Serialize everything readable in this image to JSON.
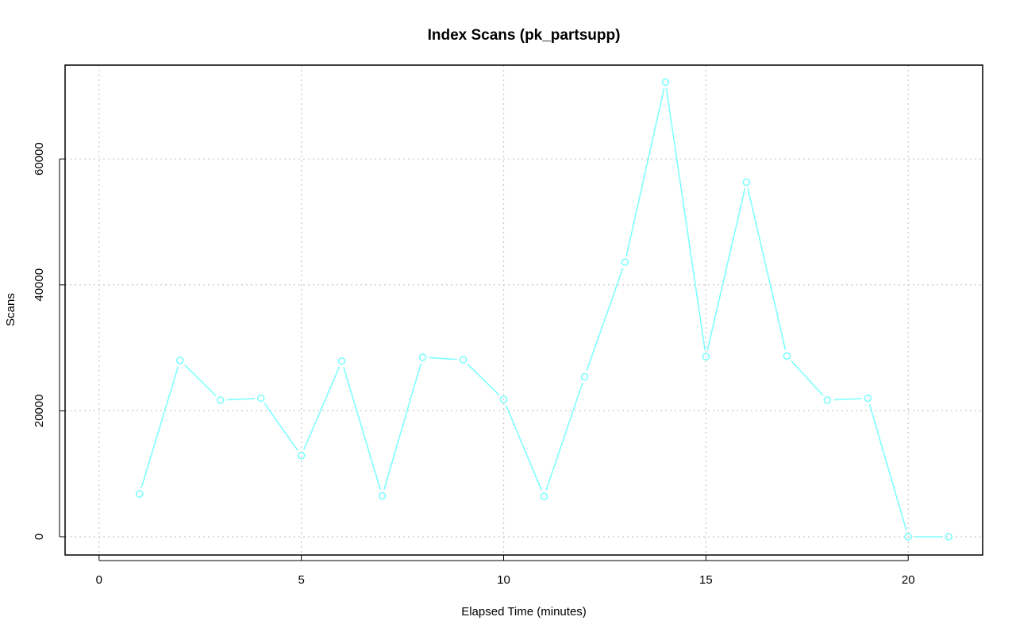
{
  "chart_data": {
    "type": "line",
    "title": "Index Scans (pk_partsupp)",
    "xlabel": "Elapsed Time (minutes)",
    "ylabel": "Scans",
    "xlim": [
      -0.84,
      21.84
    ],
    "ylim": [
      -2900,
      74900
    ],
    "x_ticks": [
      0,
      5,
      10,
      15,
      20
    ],
    "y_ticks": [
      0,
      20000,
      40000,
      60000
    ],
    "grid": true,
    "legend": "none",
    "series": [
      {
        "color": "#7fffff",
        "marker": "open-circle",
        "x": [
          1,
          2,
          3,
          4,
          5,
          6,
          7,
          8,
          9,
          10,
          11,
          12,
          13,
          14,
          15,
          16,
          17,
          18,
          19,
          20,
          21
        ],
        "values": [
          6800,
          28000,
          21700,
          22000,
          12900,
          27900,
          6500,
          28500,
          28100,
          21800,
          6400,
          25400,
          43600,
          72200,
          28600,
          56300,
          28700,
          21700,
          22000,
          0,
          0
        ]
      }
    ]
  }
}
